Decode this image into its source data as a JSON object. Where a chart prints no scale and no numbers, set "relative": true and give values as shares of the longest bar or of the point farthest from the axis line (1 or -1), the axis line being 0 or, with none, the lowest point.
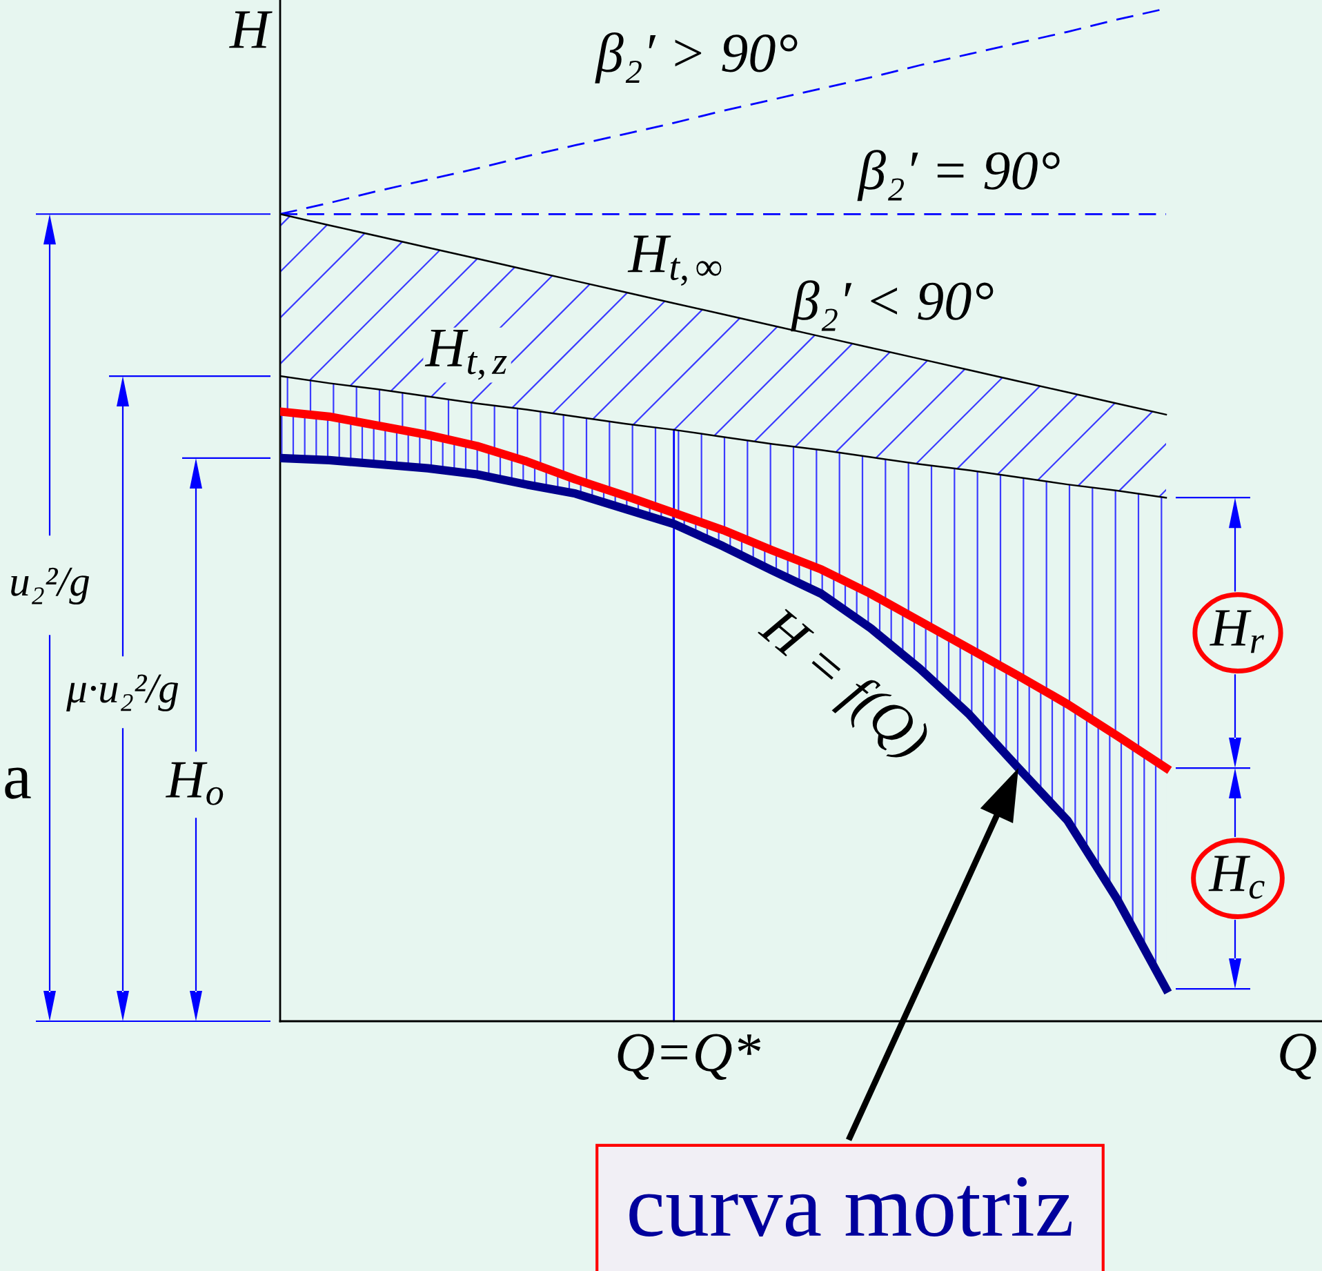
{
  "chart_data": {
    "type": "line",
    "relative": true,
    "xlabel": "Q",
    "ylabel": "H",
    "categories": [
      null,
      null,
      null,
      null,
      null,
      null,
      null,
      null,
      null,
      null,
      null,
      null,
      null,
      null,
      null,
      null,
      null,
      null,
      null
    ],
    "series": [
      {
        "name": "β₂′ > 90°",
        "color": "#0000ff",
        "line_style": "dashed",
        "values": [
          0.797,
          0.808,
          0.82,
          0.831,
          0.842,
          0.854,
          0.865,
          0.876,
          0.887,
          0.899,
          0.91,
          0.921,
          0.932,
          0.944,
          0.955,
          0.966,
          0.977,
          0.989,
          1.0
        ]
      },
      {
        "name": "H$_{t,∞}$",
        "color": "#000000",
        "values": [
          0.797,
          0.786,
          0.775,
          0.764,
          0.753,
          0.742,
          0.731,
          0.72,
          0.709,
          0.698,
          0.687,
          0.676,
          0.665,
          0.654,
          0.643,
          0.632,
          0.621,
          0.61,
          0.599
        ],
        "lower": [
          0.637,
          0.63,
          0.624,
          0.617,
          0.61,
          0.604,
          0.597,
          0.59,
          0.584,
          0.577,
          0.57,
          0.564,
          0.557,
          0.55,
          0.544,
          0.537,
          0.53,
          0.524,
          0.517
        ],
        "upper": [
          0.797,
          0.786,
          0.775,
          0.764,
          0.753,
          0.742,
          0.731,
          0.72,
          0.709,
          0.698,
          0.687,
          0.676,
          0.665,
          0.654,
          0.643,
          0.632,
          0.621,
          0.61,
          0.599
        ]
      },
      {
        "name": "H$_{t,z}$",
        "color": "#000000",
        "values": [
          0.637,
          0.63,
          0.624,
          0.617,
          0.61,
          0.604,
          0.597,
          0.59,
          0.584,
          0.577,
          0.57,
          0.564,
          0.557,
          0.55,
          0.544,
          0.537,
          0.53,
          0.524,
          0.517
        ],
        "lower": [
          0.602,
          0.597,
          0.588,
          0.579,
          0.568,
          0.553,
          0.535,
          0.519,
          0.502,
          0.485,
          0.465,
          0.446,
          0.422,
          0.395,
          0.368,
          0.341,
          0.313,
          0.282,
          0.25
        ],
        "upper": [
          0.637,
          0.63,
          0.624,
          0.617,
          0.61,
          0.604,
          0.597,
          0.59,
          0.584,
          0.577,
          0.57,
          0.564,
          0.557,
          0.55,
          0.544,
          0.537,
          0.53,
          0.524,
          0.517
        ]
      },
      {
        "color": "#ff0000",
        "values": [
          0.602,
          0.597,
          0.588,
          0.579,
          0.568,
          0.553,
          0.535,
          0.519,
          0.502,
          0.485,
          0.465,
          0.446,
          0.422,
          0.395,
          0.368,
          0.341,
          0.313,
          0.282,
          0.25
        ],
        "lower": [
          0.556,
          0.554,
          0.55,
          0.546,
          0.54,
          0.53,
          0.521,
          0.506,
          0.491,
          0.469,
          0.445,
          0.422,
          0.388,
          0.348,
          0.303,
          0.25,
          0.198,
          0.121,
          0.032
        ],
        "upper": [
          0.602,
          0.597,
          0.588,
          0.579,
          0.568,
          0.553,
          0.535,
          0.519,
          0.502,
          0.485,
          0.465,
          0.446,
          0.422,
          0.395,
          0.368,
          0.341,
          0.313,
          0.282,
          0.25
        ]
      },
      {
        "name": "H = f(Q)",
        "color": "#00008b",
        "values": [
          0.556,
          0.554,
          0.55,
          0.546,
          0.54,
          0.53,
          0.521,
          0.506,
          0.491,
          0.469,
          0.445,
          0.422,
          0.388,
          0.348,
          0.303,
          0.25,
          0.198,
          0.121,
          0.032
        ]
      },
      {
        "name": "β₂′ = 90°",
        "color": "#0000ff",
        "line_style": "dashed",
        "values": [
          0.797,
          0.797,
          0.797,
          0.797,
          0.797,
          0.797,
          0.797,
          0.797,
          0.797,
          0.797,
          0.797,
          0.797,
          0.797,
          0.797,
          0.797,
          0.797,
          0.797,
          0.797,
          0.797
        ]
      }
    ],
    "annotations": [
      "u₂²/g",
      "μ·u₂²/g",
      "H$_{o}$",
      "H$_{r}$",
      "H$_{c}$",
      "β₂′ < 90°",
      "Q=Q*",
      "curva motriz",
      "a"
    ]
  }
}
